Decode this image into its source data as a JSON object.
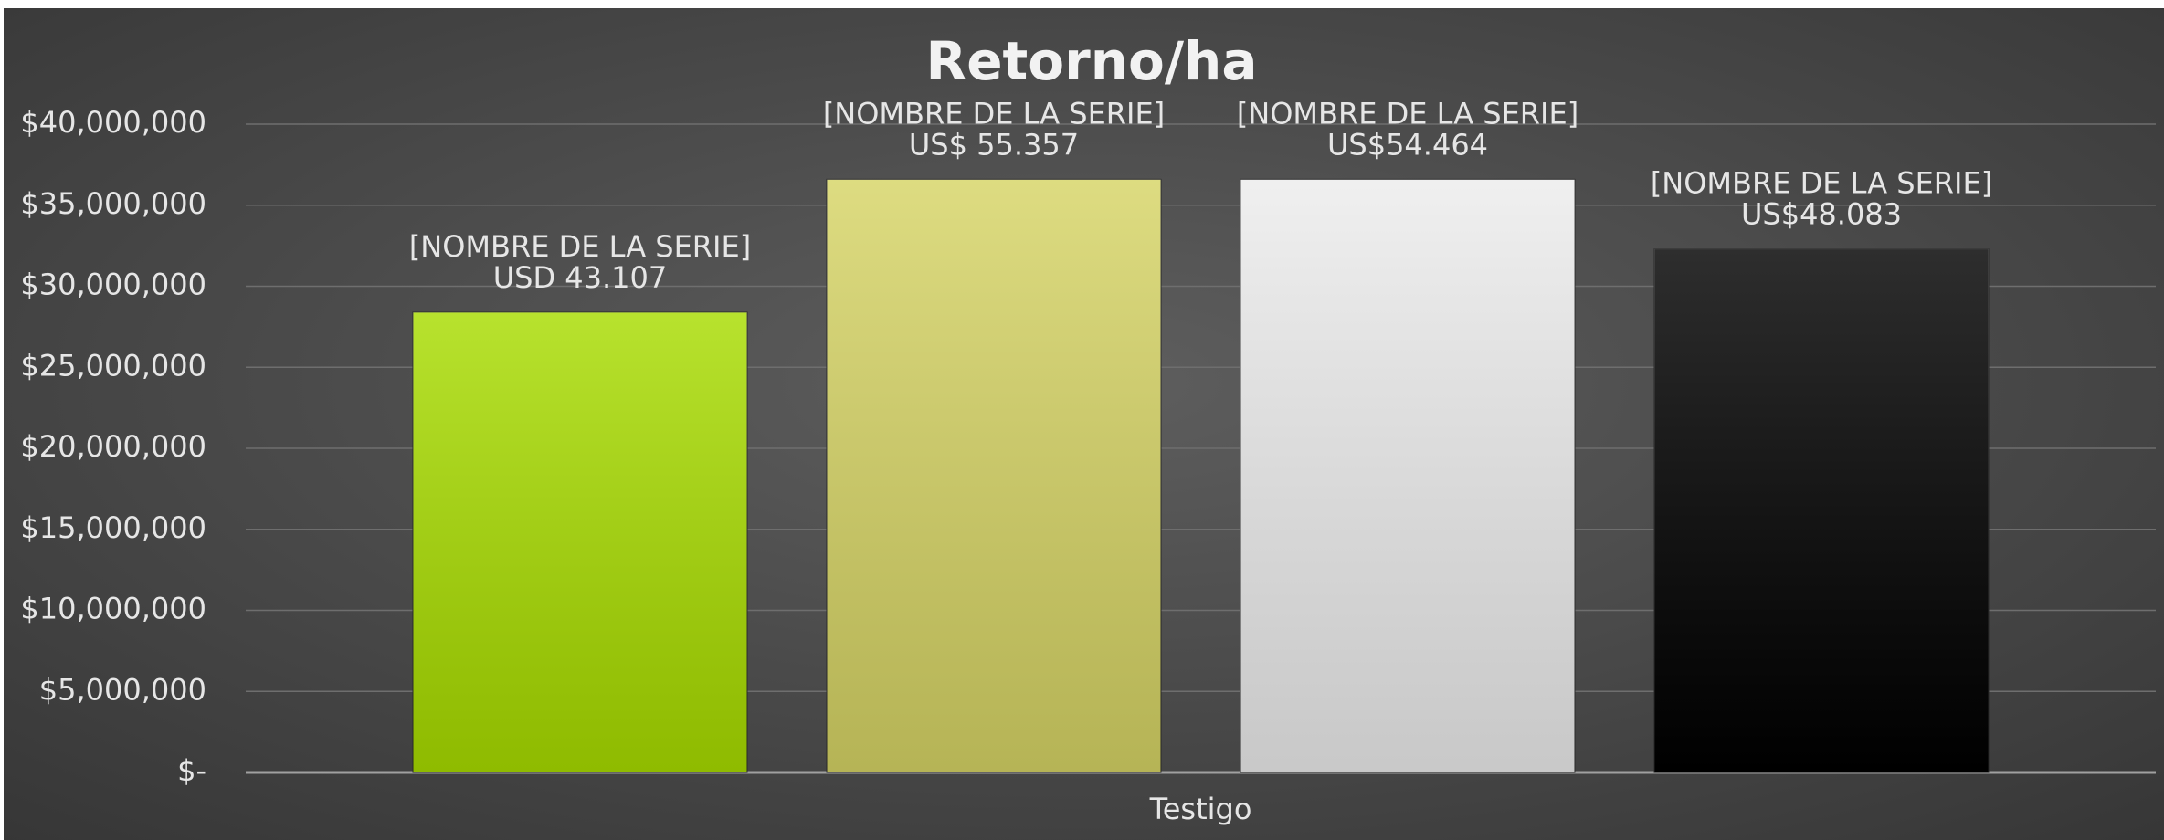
{
  "chart_data": {
    "type": "bar",
    "title": "Retorno/ha",
    "categories": [
      "Testigo"
    ],
    "series": [
      {
        "name": "[NOMBRE DE LA SERIE]",
        "color": "#a8dc00",
        "values": [
          28400000
        ]
      },
      {
        "name": "[NOMBRE DE LA SERIE]",
        "color": "#d6d465",
        "values": [
          36600000
        ]
      },
      {
        "name": "[NOMBRE DE LA SERIE]",
        "color": "#ececec",
        "values": [
          36600000
        ]
      },
      {
        "name": "[NOMBRE DE LA SERIE]",
        "color": "#000000",
        "values": [
          32300000
        ]
      }
    ],
    "annotations": [
      "USD 43.107",
      "US$ 55.357",
      "US$54.464",
      "US$48.083"
    ],
    "ylim": [
      0,
      40000000
    ],
    "yticks": [
      {
        "value": 0,
        "label": "$-"
      },
      {
        "value": 5000000,
        "label": "$5,000,000"
      },
      {
        "value": 10000000,
        "label": "$10,000,000"
      },
      {
        "value": 15000000,
        "label": "$15,000,000"
      },
      {
        "value": 20000000,
        "label": "$20,000,000"
      },
      {
        "value": 25000000,
        "label": "$25,000,000"
      },
      {
        "value": 30000000,
        "label": "$30,000,000"
      },
      {
        "value": 35000000,
        "label": "$35,000,000"
      },
      {
        "value": 40000000,
        "label": "$40,000,000"
      }
    ],
    "grid": true
  }
}
